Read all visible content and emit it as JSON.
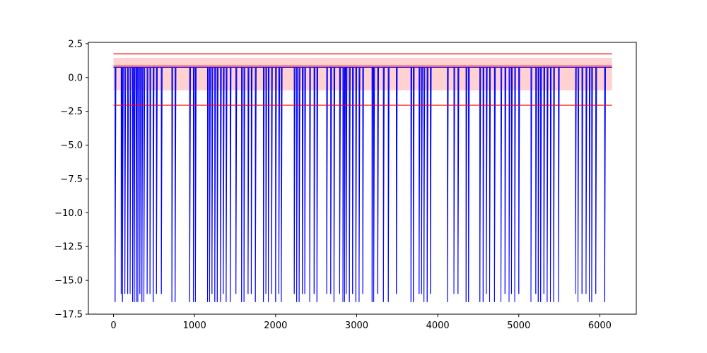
{
  "colors": {
    "signal": "#0000ff",
    "band": "#ff9999",
    "reference_lines": "#ff0000",
    "axes": "#000000",
    "background": "#ffffff"
  },
  "chart_data": {
    "type": "line",
    "title": "",
    "xlabel": "",
    "ylabel": "",
    "xlim": [
      -310,
      6450
    ],
    "ylim": [
      -17.5,
      2.6
    ],
    "grid": false,
    "legend": "none",
    "x_ticks": [
      0,
      1000,
      2000,
      3000,
      4000,
      5000,
      6000
    ],
    "x_tick_labels": [
      "0",
      "1000",
      "2000",
      "3000",
      "4000",
      "5000",
      "6000"
    ],
    "y_ticks": [
      2.5,
      0.0,
      -2.5,
      -5.0,
      -7.5,
      -10.0,
      -12.5,
      -15.0,
      -17.5
    ],
    "y_tick_labels": [
      "2.5",
      "0.0",
      "−2.5",
      "−5.0",
      "−7.5",
      "−10.0",
      "−12.5",
      "−15.0",
      "−17.5"
    ],
    "series": [
      {
        "x_range": [
          0,
          6150
        ],
        "baseline": 0.75,
        "spikes": [
          {
            "x": 20,
            "y": -16.6
          },
          {
            "x": 95,
            "y": -16.0
          },
          {
            "x": 110,
            "y": -16.6
          },
          {
            "x": 140,
            "y": -16.0
          },
          {
            "x": 175,
            "y": -16.0
          },
          {
            "x": 205,
            "y": -16.0
          },
          {
            "x": 235,
            "y": -16.6
          },
          {
            "x": 255,
            "y": -16.6
          },
          {
            "x": 280,
            "y": -16.6
          },
          {
            "x": 300,
            "y": -16.6
          },
          {
            "x": 325,
            "y": -16.0
          },
          {
            "x": 350,
            "y": -16.6
          },
          {
            "x": 375,
            "y": -16.6
          },
          {
            "x": 415,
            "y": -16.0
          },
          {
            "x": 450,
            "y": -16.0
          },
          {
            "x": 490,
            "y": -16.6
          },
          {
            "x": 530,
            "y": -16.0
          },
          {
            "x": 590,
            "y": -16.0
          },
          {
            "x": 720,
            "y": -16.6
          },
          {
            "x": 760,
            "y": -16.6
          },
          {
            "x": 940,
            "y": -16.6
          },
          {
            "x": 985,
            "y": -16.6
          },
          {
            "x": 1010,
            "y": -16.6
          },
          {
            "x": 1160,
            "y": -16.6
          },
          {
            "x": 1185,
            "y": -16.6
          },
          {
            "x": 1215,
            "y": -16.0
          },
          {
            "x": 1250,
            "y": -16.6
          },
          {
            "x": 1280,
            "y": -16.6
          },
          {
            "x": 1320,
            "y": -16.6
          },
          {
            "x": 1355,
            "y": -16.0
          },
          {
            "x": 1390,
            "y": -16.6
          },
          {
            "x": 1440,
            "y": -16.6
          },
          {
            "x": 1510,
            "y": -16.0
          },
          {
            "x": 1580,
            "y": -16.6
          },
          {
            "x": 1610,
            "y": -16.6
          },
          {
            "x": 1660,
            "y": -16.0
          },
          {
            "x": 1700,
            "y": -16.0
          },
          {
            "x": 1750,
            "y": -16.6
          },
          {
            "x": 1850,
            "y": -16.6
          },
          {
            "x": 1880,
            "y": -16.0
          },
          {
            "x": 1910,
            "y": -16.6
          },
          {
            "x": 1950,
            "y": -16.0
          },
          {
            "x": 2000,
            "y": -16.6
          },
          {
            "x": 2040,
            "y": -16.0
          },
          {
            "x": 2070,
            "y": -16.6
          },
          {
            "x": 2230,
            "y": -16.0
          },
          {
            "x": 2260,
            "y": -16.6
          },
          {
            "x": 2290,
            "y": -16.6
          },
          {
            "x": 2330,
            "y": -16.0
          },
          {
            "x": 2360,
            "y": -16.0
          },
          {
            "x": 2420,
            "y": -16.6
          },
          {
            "x": 2475,
            "y": -16.0
          },
          {
            "x": 2510,
            "y": -16.6
          },
          {
            "x": 2630,
            "y": -16.0
          },
          {
            "x": 2680,
            "y": -16.0
          },
          {
            "x": 2720,
            "y": -16.6
          },
          {
            "x": 2790,
            "y": -16.0
          },
          {
            "x": 2830,
            "y": -16.6
          },
          {
            "x": 2850,
            "y": -16.6
          },
          {
            "x": 2870,
            "y": -16.0
          },
          {
            "x": 2910,
            "y": -16.6
          },
          {
            "x": 2950,
            "y": -16.0
          },
          {
            "x": 2990,
            "y": -16.6
          },
          {
            "x": 3030,
            "y": -16.6
          },
          {
            "x": 3075,
            "y": -16.0
          },
          {
            "x": 3190,
            "y": -16.6
          },
          {
            "x": 3210,
            "y": -16.6
          },
          {
            "x": 3260,
            "y": -16.0
          },
          {
            "x": 3330,
            "y": -16.6
          },
          {
            "x": 3390,
            "y": -16.6
          },
          {
            "x": 3490,
            "y": -16.0
          },
          {
            "x": 3670,
            "y": -16.6
          },
          {
            "x": 3700,
            "y": -16.6
          },
          {
            "x": 3770,
            "y": -16.0
          },
          {
            "x": 3800,
            "y": -16.0
          },
          {
            "x": 3830,
            "y": -16.6
          },
          {
            "x": 3870,
            "y": -16.6
          },
          {
            "x": 3910,
            "y": -16.0
          },
          {
            "x": 4120,
            "y": -16.6
          },
          {
            "x": 4200,
            "y": -16.0
          },
          {
            "x": 4250,
            "y": -16.0
          },
          {
            "x": 4350,
            "y": -16.6
          },
          {
            "x": 4380,
            "y": -16.6
          },
          {
            "x": 4520,
            "y": -16.6
          },
          {
            "x": 4560,
            "y": -16.6
          },
          {
            "x": 4600,
            "y": -16.0
          },
          {
            "x": 4640,
            "y": -16.6
          },
          {
            "x": 4700,
            "y": -16.6
          },
          {
            "x": 4780,
            "y": -16.6
          },
          {
            "x": 4830,
            "y": -16.0
          },
          {
            "x": 4880,
            "y": -16.6
          },
          {
            "x": 4910,
            "y": -16.0
          },
          {
            "x": 4950,
            "y": -16.6
          },
          {
            "x": 5000,
            "y": -16.0
          },
          {
            "x": 5150,
            "y": -16.6
          },
          {
            "x": 5210,
            "y": -16.0
          },
          {
            "x": 5240,
            "y": -16.6
          },
          {
            "x": 5270,
            "y": -16.6
          },
          {
            "x": 5310,
            "y": -16.0
          },
          {
            "x": 5350,
            "y": -16.6
          },
          {
            "x": 5390,
            "y": -16.6
          },
          {
            "x": 5430,
            "y": -16.6
          },
          {
            "x": 5490,
            "y": -16.6
          },
          {
            "x": 5700,
            "y": -16.0
          },
          {
            "x": 5730,
            "y": -16.6
          },
          {
            "x": 5780,
            "y": -16.0
          },
          {
            "x": 5830,
            "y": -16.0
          },
          {
            "x": 5870,
            "y": -16.6
          },
          {
            "x": 5900,
            "y": -16.6
          },
          {
            "x": 5950,
            "y": -16.0
          },
          {
            "x": 6060,
            "y": -16.6
          }
        ]
      }
    ],
    "band": {
      "y_min": -0.95,
      "y_max": 1.45,
      "x_range": [
        0,
        6150
      ]
    },
    "reference_lines": [
      1.75,
      0.85,
      -2.05
    ]
  }
}
